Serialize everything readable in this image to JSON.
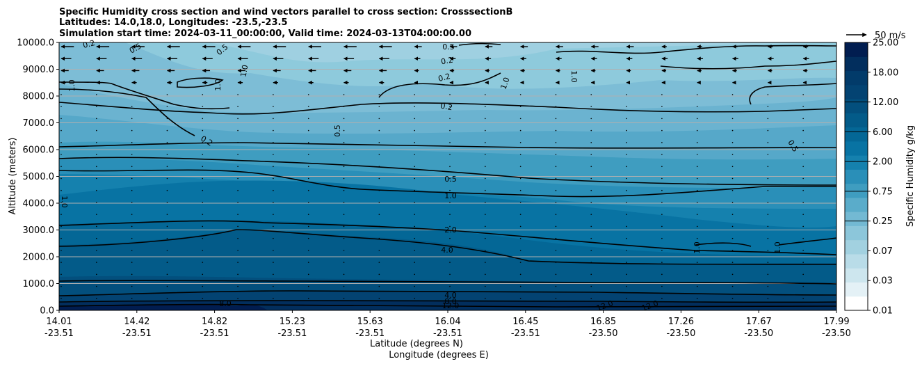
{
  "title": {
    "line1": "Specific Humidity cross section and wind vectors parallel to cross section: CrosssectionB",
    "line2": "Latitudes: 14.0,18.0, Longitudes: -23.5,-23.5",
    "line3": "Simulation start time: 2024-03-11_00:00:00, Valid time: 2024-03-13T04:00:00.00"
  },
  "chart_data": {
    "type": "heatmap",
    "title": "Specific Humidity cross section and wind vectors parallel to cross section: CrosssectionB",
    "ylabel": "Altitude (meters)",
    "xlabel_lat": "Latitude (degrees N)",
    "xlabel_lon": "Longitude (degrees E)",
    "ylim": [
      0,
      10000
    ],
    "y_ticks": [
      "0.0",
      "1000.0",
      "2000.0",
      "3000.0",
      "4000.0",
      "5000.0",
      "6000.0",
      "7000.0",
      "8000.0",
      "9000.0",
      "10000.0"
    ],
    "x_ticks": [
      {
        "lat": "14.01",
        "lon": "-23.51"
      },
      {
        "lat": "14.42",
        "lon": "-23.51"
      },
      {
        "lat": "14.82",
        "lon": "-23.51"
      },
      {
        "lat": "15.23",
        "lon": "-23.51"
      },
      {
        "lat": "15.63",
        "lon": "-23.51"
      },
      {
        "lat": "16.04",
        "lon": "-23.51"
      },
      {
        "lat": "16.45",
        "lon": "-23.51"
      },
      {
        "lat": "16.85",
        "lon": "-23.50"
      },
      {
        "lat": "17.26",
        "lon": "-23.50"
      },
      {
        "lat": "17.67",
        "lon": "-23.50"
      },
      {
        "lat": "17.99",
        "lon": "-23.50"
      }
    ],
    "grid": "horizontal",
    "colorbar": {
      "label": "Specific Humidity g/kg",
      "ticks": [
        "0.01",
        "0.03",
        "0.07",
        "0.25",
        "0.75",
        "2.00",
        "6.00",
        "12.00",
        "18.00",
        "25.00"
      ],
      "inner_ticks": [
        "0.25",
        "0.75",
        "2.00",
        "6.00",
        "12.00"
      ],
      "colors": [
        "#ffffff",
        "#e4f1f6",
        "#cde6ee",
        "#b9dce8",
        "#a2d1e0",
        "#8cc6da",
        "#73b9d3",
        "#5aacca",
        "#3f9dc0",
        "#2a8fb8",
        "#1581ae",
        "#0873a3",
        "#046796",
        "#035b89",
        "#034f7d",
        "#034372",
        "#023b6a",
        "#022e5d",
        "#011d50"
      ]
    },
    "quiver_key": {
      "label": "50 m/s",
      "value": 50
    },
    "contours": [
      {
        "level": "0.2",
        "label_positions": [
          "upper-left",
          "9000 m near 16.04",
          "7000 m near 16.04",
          "6300 m near 14.95"
        ]
      },
      {
        "level": "0.5",
        "label_positions": [
          "9800 m near 14.6",
          "4800 m near 16.04",
          "6500 m right edge"
        ]
      },
      {
        "level": "1.0",
        "label_positions": [
          "8400 m left edge",
          "3800 m near 16.04",
          "2300 m near 17.3",
          "4000 m left edge"
        ]
      },
      {
        "level": "2.0",
        "label_positions": [
          "3000 m near 16.04"
        ]
      },
      {
        "level": "4.0",
        "label_positions": [
          "2300 m near 16.04",
          "600 m near 16.04"
        ]
      },
      {
        "level": "8.0",
        "label_positions": [
          "250 m near 15.0",
          "400 m near 16.04"
        ]
      },
      {
        "level": "12.0",
        "label_positions": [
          "250 m near 16.04",
          "250 m near 16.9",
          "250 m near 17.2"
        ]
      }
    ],
    "wind": {
      "upper_levels_direction": "westward (toward lower latitude)",
      "strong_vectors_altitude_range": [
        8500,
        10000
      ],
      "low_levels": "near calm"
    }
  }
}
